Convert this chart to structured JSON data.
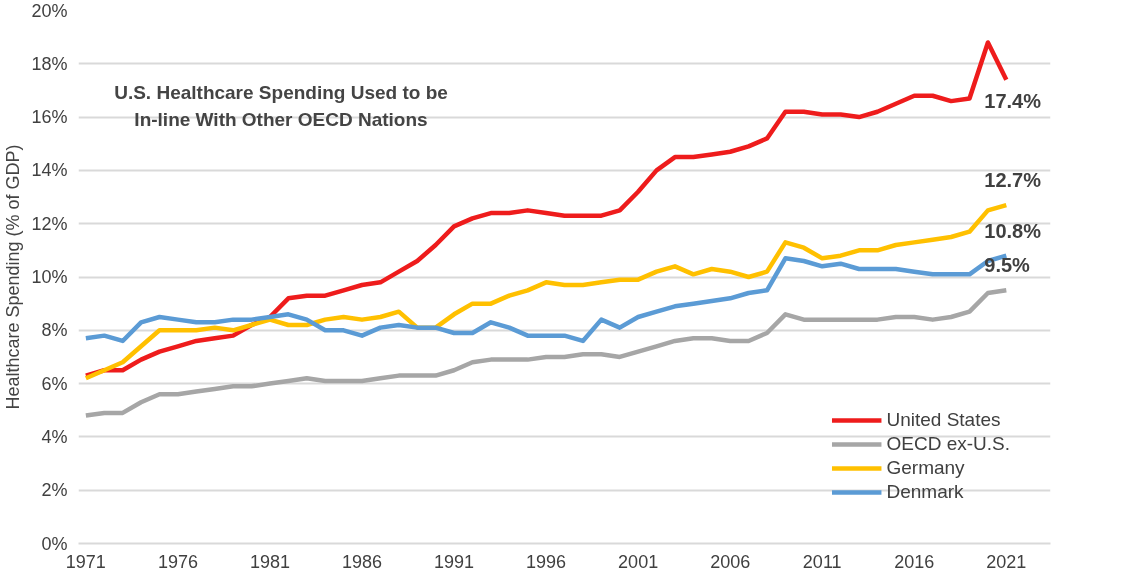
{
  "chart_data": {
    "type": "line",
    "ylabel": "Healthcare Spending (% of GDP)",
    "annotations": [
      "U.S. Healthcare Spending Used to be In-line With Other OECD Nations"
    ],
    "x": [
      1971,
      1972,
      1973,
      1974,
      1975,
      1976,
      1977,
      1978,
      1979,
      1980,
      1981,
      1982,
      1983,
      1984,
      1985,
      1986,
      1987,
      1988,
      1989,
      1990,
      1991,
      1992,
      1993,
      1994,
      1995,
      1996,
      1997,
      1998,
      1999,
      2000,
      2001,
      2002,
      2003,
      2004,
      2005,
      2006,
      2007,
      2008,
      2009,
      2010,
      2011,
      2012,
      2013,
      2014,
      2015,
      2016,
      2017,
      2018,
      2019,
      2020,
      2021
    ],
    "series": [
      {
        "name": "United States",
        "color": "#ee1c1c",
        "values": [
          6.3,
          6.5,
          6.5,
          6.9,
          7.2,
          7.4,
          7.6,
          7.7,
          7.8,
          8.2,
          8.5,
          9.2,
          9.3,
          9.3,
          9.5,
          9.7,
          9.8,
          10.2,
          10.6,
          11.2,
          11.9,
          12.2,
          12.4,
          12.4,
          12.5,
          12.4,
          12.3,
          12.3,
          12.3,
          12.5,
          13.2,
          14.0,
          14.5,
          14.5,
          14.6,
          14.7,
          14.9,
          15.2,
          16.2,
          16.2,
          16.1,
          16.1,
          16.0,
          16.2,
          16.5,
          16.8,
          16.8,
          16.6,
          16.7,
          18.8,
          17.4
        ],
        "value_labels": [
          null,
          null,
          null,
          null,
          null,
          null,
          null,
          null,
          null,
          null,
          null,
          null,
          null,
          null,
          null,
          null,
          null,
          null,
          null,
          null,
          null,
          null,
          null,
          null,
          null,
          null,
          null,
          null,
          null,
          null,
          null,
          null,
          null,
          null,
          null,
          null,
          null,
          null,
          null,
          null,
          null,
          null,
          null,
          null,
          null,
          null,
          null,
          null,
          null,
          null,
          "17.4%"
        ]
      },
      {
        "name": "OECD ex-U.S.",
        "color": "#a6a6a6",
        "values": [
          4.8,
          4.9,
          4.9,
          5.3,
          5.6,
          5.6,
          5.7,
          5.8,
          5.9,
          5.9,
          6.0,
          6.1,
          6.2,
          6.1,
          6.1,
          6.1,
          6.2,
          6.3,
          6.3,
          6.3,
          6.5,
          6.8,
          6.9,
          6.9,
          6.9,
          7.0,
          7.0,
          7.1,
          7.1,
          7.0,
          7.2,
          7.4,
          7.6,
          7.7,
          7.7,
          7.6,
          7.6,
          7.9,
          8.6,
          8.4,
          8.4,
          8.4,
          8.4,
          8.4,
          8.5,
          8.5,
          8.4,
          8.5,
          8.7,
          9.4,
          9.5
        ],
        "value_labels": [
          null,
          null,
          null,
          null,
          null,
          null,
          null,
          null,
          null,
          null,
          null,
          null,
          null,
          null,
          null,
          null,
          null,
          null,
          null,
          null,
          null,
          null,
          null,
          null,
          null,
          null,
          null,
          null,
          null,
          null,
          null,
          null,
          null,
          null,
          null,
          null,
          null,
          null,
          null,
          null,
          null,
          null,
          null,
          null,
          null,
          null,
          null,
          null,
          null,
          null,
          "9.5%"
        ]
      },
      {
        "name": "Germany",
        "color": "#ffc000",
        "values": [
          6.2,
          6.5,
          6.8,
          7.4,
          8.0,
          8.0,
          8.0,
          8.1,
          8.0,
          8.2,
          8.4,
          8.2,
          8.2,
          8.4,
          8.5,
          8.4,
          8.5,
          8.7,
          8.1,
          8.1,
          8.6,
          9.0,
          9.0,
          9.3,
          9.5,
          9.8,
          9.7,
          9.7,
          9.8,
          9.9,
          9.9,
          10.2,
          10.4,
          10.1,
          10.3,
          10.2,
          10.0,
          10.2,
          11.3,
          11.1,
          10.7,
          10.8,
          11.0,
          11.0,
          11.2,
          11.3,
          11.4,
          11.5,
          11.7,
          12.5,
          12.7
        ],
        "value_labels": [
          null,
          null,
          null,
          null,
          null,
          null,
          null,
          null,
          null,
          null,
          null,
          null,
          null,
          null,
          null,
          null,
          null,
          null,
          null,
          null,
          null,
          null,
          null,
          null,
          null,
          null,
          null,
          null,
          null,
          null,
          null,
          null,
          null,
          null,
          null,
          null,
          null,
          null,
          null,
          null,
          null,
          null,
          null,
          null,
          null,
          null,
          null,
          null,
          null,
          null,
          "12.7%"
        ]
      },
      {
        "name": "Denmark",
        "color": "#5b9bd5",
        "values": [
          7.7,
          7.8,
          7.6,
          8.3,
          8.5,
          8.4,
          8.3,
          8.3,
          8.4,
          8.4,
          8.5,
          8.6,
          8.4,
          8.0,
          8.0,
          7.8,
          8.1,
          8.2,
          8.1,
          8.1,
          7.9,
          7.9,
          8.3,
          8.1,
          7.8,
          7.8,
          7.8,
          7.6,
          8.4,
          8.1,
          8.5,
          8.7,
          8.9,
          9.0,
          9.1,
          9.2,
          9.4,
          9.5,
          10.7,
          10.6,
          10.4,
          10.5,
          10.3,
          10.3,
          10.3,
          10.2,
          10.1,
          10.1,
          10.1,
          10.6,
          10.8
        ],
        "value_labels": [
          null,
          null,
          null,
          null,
          null,
          null,
          null,
          null,
          null,
          null,
          null,
          null,
          null,
          null,
          null,
          null,
          null,
          null,
          null,
          null,
          null,
          null,
          null,
          null,
          null,
          null,
          null,
          null,
          null,
          null,
          null,
          null,
          null,
          null,
          null,
          null,
          null,
          null,
          null,
          null,
          null,
          null,
          null,
          null,
          null,
          null,
          null,
          null,
          null,
          null,
          "10.8%"
        ]
      }
    ],
    "xlim": [
      1970.6,
      2023.4
    ],
    "xticks": [
      1971,
      1976,
      1981,
      1986,
      1991,
      1996,
      2001,
      2006,
      2011,
      2016,
      2021
    ],
    "ylim": [
      0,
      20
    ],
    "yticks": [
      {
        "value": 0,
        "label": "0%"
      },
      {
        "value": 2,
        "label": "2%"
      },
      {
        "value": 4,
        "label": "4%"
      },
      {
        "value": 6,
        "label": "6%"
      },
      {
        "value": 8,
        "label": "8%"
      },
      {
        "value": 10,
        "label": "10%"
      },
      {
        "value": 12,
        "label": "12%"
      },
      {
        "value": 14,
        "label": "14%"
      },
      {
        "value": 16,
        "label": "16%"
      },
      {
        "value": 18,
        "label": "18%"
      },
      {
        "value": 20,
        "label": "20%"
      }
    ],
    "grid": "y",
    "legend": "bottom right",
    "marker": "none",
    "line_style": "solid"
  }
}
